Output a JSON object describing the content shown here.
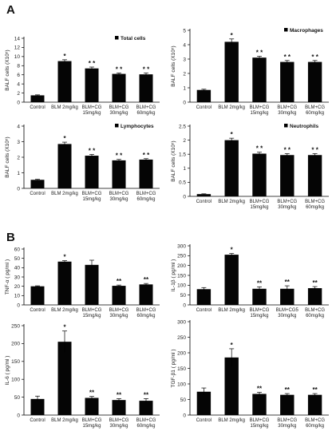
{
  "panel_letters": [
    "A",
    "B"
  ],
  "chart_data": [
    {
      "type": "bar",
      "panel": "A",
      "legend": "Total cells",
      "ylabel": "BALF cells (X10⁵)",
      "ylim": [
        0,
        14
      ],
      "yticks": [
        0,
        2,
        4,
        6,
        8,
        10,
        12,
        14
      ],
      "categories": [
        [
          "Control"
        ],
        [
          "BLM 2mg/kg"
        ],
        [
          "BLM+CG",
          "15mg/kg"
        ],
        [
          "BLM+CG",
          "30mg/kg"
        ],
        [
          "BLM+CG",
          "60mg/kg"
        ]
      ],
      "values": [
        1.5,
        9.0,
        7.4,
        6.2,
        6.1
      ],
      "errors": [
        0.1,
        0.3,
        0.3,
        0.2,
        0.3
      ],
      "significance": [
        "",
        "*",
        "* *",
        "* *",
        "* *"
      ]
    },
    {
      "type": "bar",
      "panel": "A",
      "legend": "Macrophages",
      "ylabel": "BALF cells (X10⁵)",
      "ylim": [
        0,
        5
      ],
      "yticks": [
        0,
        1,
        2,
        3,
        4,
        5
      ],
      "categories": [
        [
          "Control"
        ],
        [
          "BLM 2mg/kg"
        ],
        [
          "BLM+CG",
          "15mg/kg"
        ],
        [
          "BLM+CG",
          "30mg/kg"
        ],
        [
          "BLM+CG",
          "60mg/kg"
        ]
      ],
      "values": [
        0.85,
        4.2,
        3.1,
        2.8,
        2.8
      ],
      "errors": [
        0.05,
        0.2,
        0.1,
        0.1,
        0.1
      ],
      "significance": [
        "",
        "*",
        "* *",
        "* *",
        "* *"
      ]
    },
    {
      "type": "bar",
      "panel": "A",
      "legend": "Lymphocytes",
      "ylabel": "BALF cells (X10⁵)",
      "ylim": [
        0,
        4
      ],
      "yticks": [
        0,
        1,
        2,
        3,
        4
      ],
      "categories": [
        [
          "Control"
        ],
        [
          "BLM 2mg/kg"
        ],
        [
          "BLM+CG",
          "15mg/kg"
        ],
        [
          "BLM+CG",
          "30mg/kg"
        ],
        [
          "BLM+CG",
          "60mg/kg"
        ]
      ],
      "values": [
        0.55,
        2.85,
        2.1,
        1.8,
        1.85
      ],
      "errors": [
        0.03,
        0.12,
        0.08,
        0.06,
        0.06
      ],
      "significance": [
        "",
        "*",
        "* *",
        "* *",
        "* *"
      ]
    },
    {
      "type": "bar",
      "panel": "A",
      "legend": "Neutrophils",
      "ylabel": "BALF cells (X10⁵)",
      "ylim": [
        0,
        2.5
      ],
      "yticks": [
        0,
        0.5,
        1,
        1.5,
        2,
        2.5
      ],
      "categories": [
        [
          "Control"
        ],
        [
          "BLM 2mg/kg"
        ],
        [
          "BLM+CG",
          "15mg/kg"
        ],
        [
          "BLM+CG",
          "30mg/kg"
        ],
        [
          "BLM+CG",
          "60mg/kg"
        ]
      ],
      "values": [
        0.08,
        2.0,
        1.52,
        1.47,
        1.47
      ],
      "errors": [
        0.01,
        0.07,
        0.05,
        0.05,
        0.05
      ],
      "significance": [
        "",
        "*",
        "* *",
        "* *",
        "* *"
      ]
    },
    {
      "type": "bar",
      "panel": "B",
      "legend": "",
      "ylabel": "TNF-α ( pg/ml )",
      "ylim": [
        0,
        60
      ],
      "yticks": [
        0,
        10,
        20,
        30,
        40,
        50,
        60
      ],
      "categories": [
        [
          "Control"
        ],
        [
          "BLM 2mg/kg"
        ],
        [
          "BLM+CG",
          "15mg/kg"
        ],
        [
          "BLM+CG",
          "30mg/kg"
        ],
        [
          "BLM+CG",
          "60mg/kg"
        ]
      ],
      "values": [
        20,
        46.5,
        43,
        20.5,
        22
      ],
      "errors": [
        0.5,
        1.0,
        5.0,
        0.8,
        1.0
      ],
      "significance": [
        "",
        "*",
        "",
        "**",
        "**"
      ]
    },
    {
      "type": "bar",
      "panel": "B",
      "legend": "",
      "ylabel": "IL-1β ( pg/ml )",
      "ylim": [
        0,
        300
      ],
      "yticks": [
        0,
        50,
        100,
        150,
        200,
        250,
        300
      ],
      "categories": [
        [
          "Control"
        ],
        [
          "BLM 2mg/kg"
        ],
        [
          "BLM+CG",
          "15mg/kg"
        ],
        [
          "BLM+CG5",
          "30mg/kg"
        ],
        [
          "BLM+CG",
          "60mg/kg"
        ]
      ],
      "values": [
        80,
        255,
        82,
        82,
        85
      ],
      "errors": [
        8,
        6,
        10,
        15,
        8
      ],
      "significance": [
        "",
        "*",
        "**",
        "**",
        "**"
      ]
    },
    {
      "type": "bar",
      "panel": "B",
      "legend": "",
      "ylabel": "IL-6 ( pg/ml )",
      "ylim": [
        0,
        250
      ],
      "yticks": [
        0,
        50,
        100,
        150,
        200,
        250
      ],
      "categories": [
        [
          "Control"
        ],
        [
          "BLM 2mg/kg"
        ],
        [
          "BLM+CG",
          "15mg/kg"
        ],
        [
          "BLM+CG",
          "30mg/kg"
        ],
        [
          "BLM+CG",
          "60mg/kg"
        ]
      ],
      "values": [
        45,
        205,
        48,
        42,
        40
      ],
      "errors": [
        8,
        30,
        4,
        4,
        6
      ],
      "significance": [
        "",
        "*",
        "**",
        "**",
        "**"
      ]
    },
    {
      "type": "bar",
      "panel": "B",
      "legend": "",
      "ylabel": "TGF-β1 ( pg/ml )",
      "ylim": [
        0,
        300
      ],
      "yticks": [
        0,
        50,
        100,
        150,
        200,
        250,
        300
      ],
      "categories": [
        [
          "Control"
        ],
        [
          "BLM 2mg/kg"
        ],
        [
          "BLM+CG",
          "15mg/kg"
        ],
        [
          "BLM+CG",
          "30mg/kg"
        ],
        [
          "BLM+CG",
          "60mg/kg"
        ]
      ],
      "values": [
        75,
        185,
        68,
        65,
        65
      ],
      "errors": [
        12,
        28,
        5,
        4,
        4
      ],
      "significance": [
        "",
        "*",
        "**",
        "**",
        "**"
      ]
    }
  ]
}
